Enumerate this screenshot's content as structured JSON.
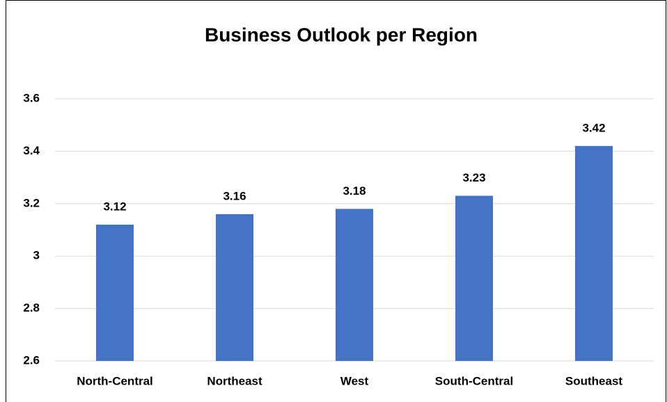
{
  "chart_data": {
    "type": "bar",
    "title": "Business Outlook per Region",
    "categories": [
      "North-Central",
      "Northeast",
      "West",
      "South-Central",
      "Southeast"
    ],
    "values": [
      3.12,
      3.16,
      3.18,
      3.23,
      3.42
    ],
    "color": "#4472c4",
    "ylim": [
      2.6,
      3.6
    ],
    "yticks": [
      2.6,
      2.8,
      3,
      3.2,
      3.4,
      3.6
    ],
    "grid": true
  }
}
